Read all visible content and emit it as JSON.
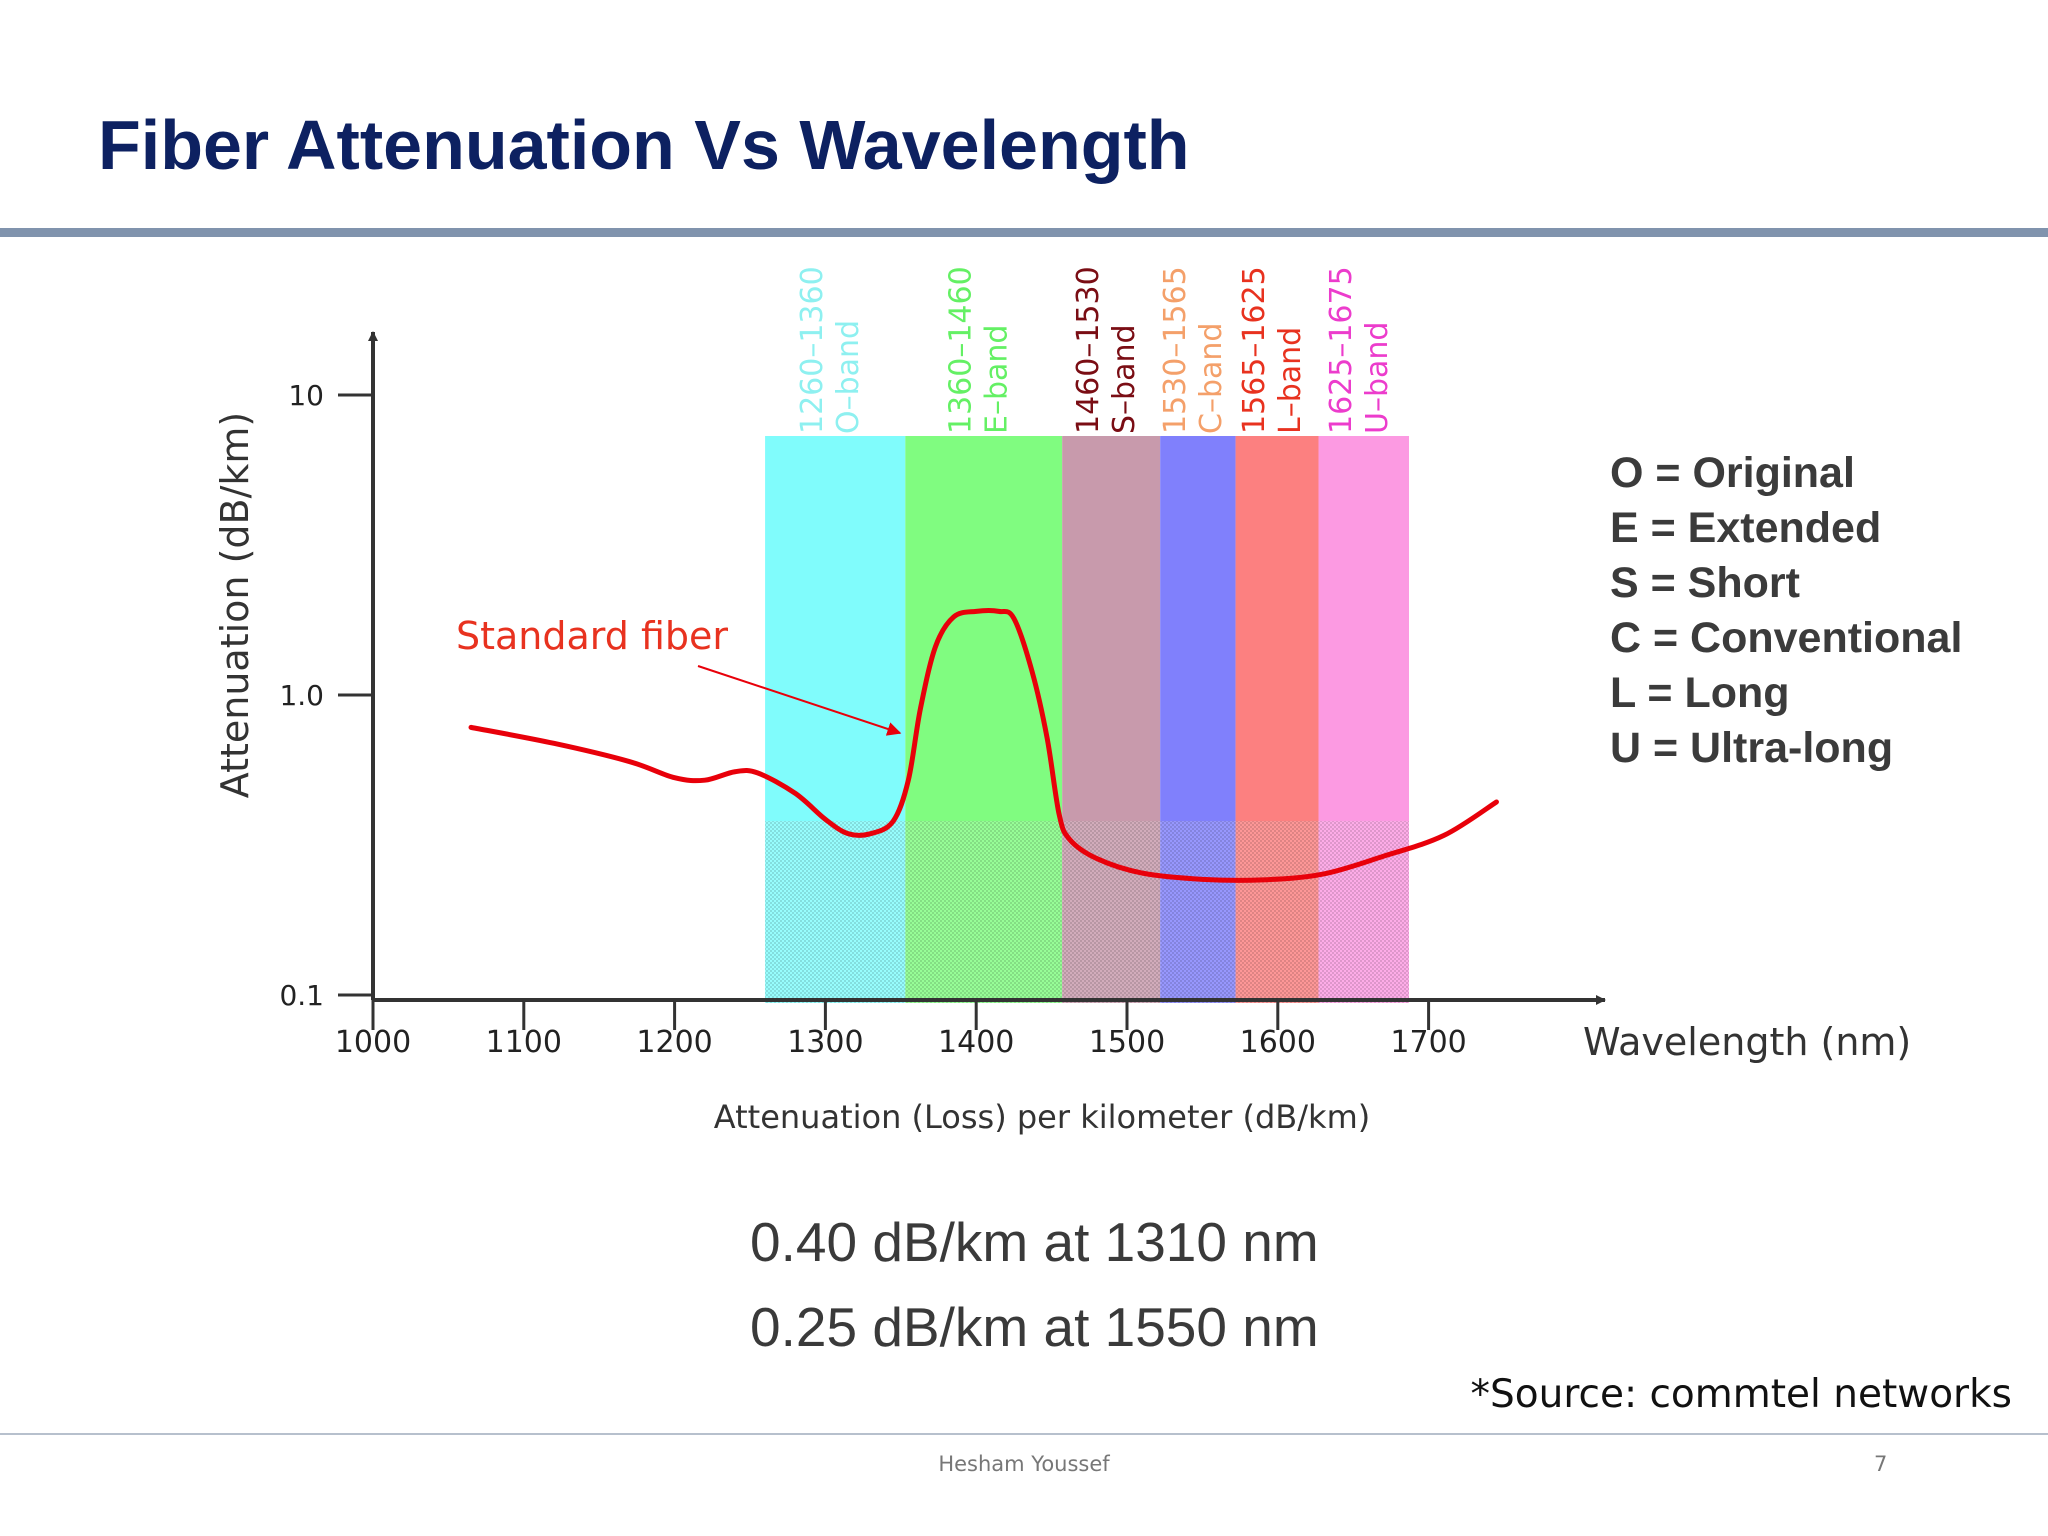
{
  "slide": {
    "title": "Fiber Attenuation Vs Wavelength",
    "legend": [
      "O = Original",
      "E = Extended",
      "S = Short",
      "C = Conventional",
      "L = Long",
      "U = Ultra-long"
    ],
    "stats": [
      "0.40 dB/km at 1310 nm",
      "0.25 dB/km at 1550 nm"
    ],
    "source": "*Source: commtel networks",
    "footer_author": "Hesham Youssef",
    "page_number": "7"
  },
  "chart_data": {
    "type": "line",
    "xlabel": "Wavelength (nm)",
    "ylabel": "Attenuation (dB/km)",
    "caption": "Attenuation (Loss) per kilometer (dB/km)",
    "x_ticks": [
      1000,
      1100,
      1200,
      1300,
      1400,
      1500,
      1600,
      1700
    ],
    "y_ticks": [
      {
        "value": 0.1,
        "label": "0.1"
      },
      {
        "value": 1.0,
        "label": "1.0"
      },
      {
        "value": 10,
        "label": "10"
      }
    ],
    "yscale": "log",
    "xlim": [
      1000,
      1820
    ],
    "ylim": [
      0.1,
      10
    ],
    "bands": [
      {
        "range": "1260–1360",
        "name": "O–band",
        "x0": 1260,
        "x1": 1353,
        "fill": "#80fcfc",
        "label_color": "#8ef0f0"
      },
      {
        "range": "1360–1460",
        "name": "E–band",
        "x0": 1353,
        "x1": 1457,
        "fill": "#80fc80",
        "label_color": "#64f064"
      },
      {
        "range": "1460–1530",
        "name": "S–band",
        "x0": 1457,
        "x1": 1522,
        "fill": "#c89aac",
        "label_color": "#7a0d14"
      },
      {
        "range": "1530–1565",
        "name": "C–band",
        "x0": 1522,
        "x1": 1572,
        "fill": "#8080fc",
        "label_color": "#f4a06a"
      },
      {
        "range": "1565–1625",
        "name": "L–band",
        "x0": 1572,
        "x1": 1627,
        "fill": "#fc8080",
        "label_color": "#e8321f"
      },
      {
        "range": "1625–1675",
        "name": "U–band",
        "x0": 1627,
        "x1": 1687,
        "fill": "#fc9ae2",
        "label_color": "#ec3ccc"
      }
    ],
    "bands_top": 7.3,
    "series": [
      {
        "name": "Standard fiber",
        "color": "#e8000a",
        "points": [
          [
            1065,
            0.78
          ],
          [
            1120,
            0.69
          ],
          [
            1170,
            0.6
          ],
          [
            1200,
            0.53
          ],
          [
            1220,
            0.52
          ],
          [
            1240,
            0.555
          ],
          [
            1255,
            0.55
          ],
          [
            1280,
            0.47
          ],
          [
            1300,
            0.385
          ],
          [
            1315,
            0.345
          ],
          [
            1330,
            0.345
          ],
          [
            1345,
            0.38
          ],
          [
            1355,
            0.52
          ],
          [
            1363,
            0.9
          ],
          [
            1373,
            1.45
          ],
          [
            1385,
            1.82
          ],
          [
            1400,
            1.9
          ],
          [
            1415,
            1.9
          ],
          [
            1425,
            1.8
          ],
          [
            1437,
            1.2
          ],
          [
            1447,
            0.72
          ],
          [
            1455,
            0.4
          ],
          [
            1462,
            0.33
          ],
          [
            1480,
            0.285
          ],
          [
            1510,
            0.255
          ],
          [
            1550,
            0.243
          ],
          [
            1590,
            0.242
          ],
          [
            1630,
            0.253
          ],
          [
            1670,
            0.29
          ],
          [
            1710,
            0.34
          ],
          [
            1745,
            0.44
          ]
        ]
      }
    ],
    "annotation": {
      "text": "Standard fiber",
      "color": "#e8321f"
    }
  }
}
